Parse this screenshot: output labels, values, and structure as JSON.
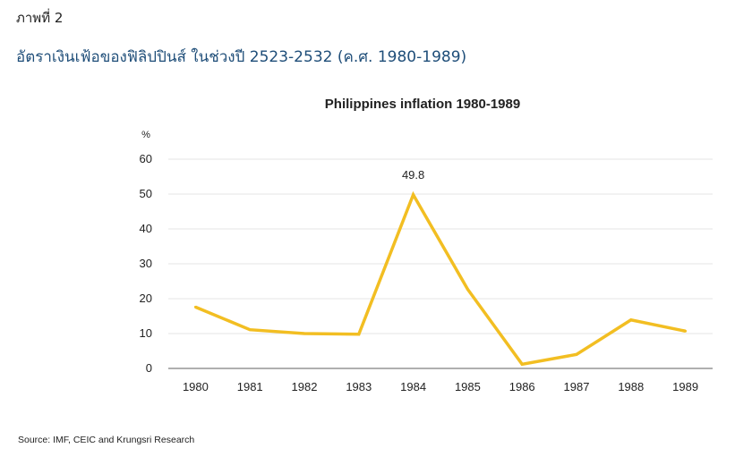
{
  "figure_label": "ภาพที่ 2",
  "figure_title": "อัตราเงินเฟ้อของฟิลิปปินส์ ในช่วงปี 2523-2532 (ค.ศ. 1980-1989)",
  "source": "Source: IMF, CEIC and Krungsri Research",
  "chart_data": {
    "type": "line",
    "title": "Philippines inflation 1980-1989",
    "ylabel": "%",
    "xlabel": "",
    "categories": [
      "1980",
      "1981",
      "1982",
      "1983",
      "1984",
      "1985",
      "1986",
      "1987",
      "1988",
      "1989"
    ],
    "series": [
      {
        "values": [
          17.6,
          11.1,
          10.0,
          9.8,
          49.8,
          22.7,
          1.2,
          4.0,
          13.9,
          10.7
        ]
      }
    ],
    "yticks": [
      0,
      10,
      20,
      30,
      40,
      50,
      60
    ],
    "ylim": [
      0,
      60
    ],
    "grid": true,
    "line_color": "#F2BE22",
    "annotations": [
      {
        "category": "1984",
        "text": "49.8"
      }
    ]
  }
}
